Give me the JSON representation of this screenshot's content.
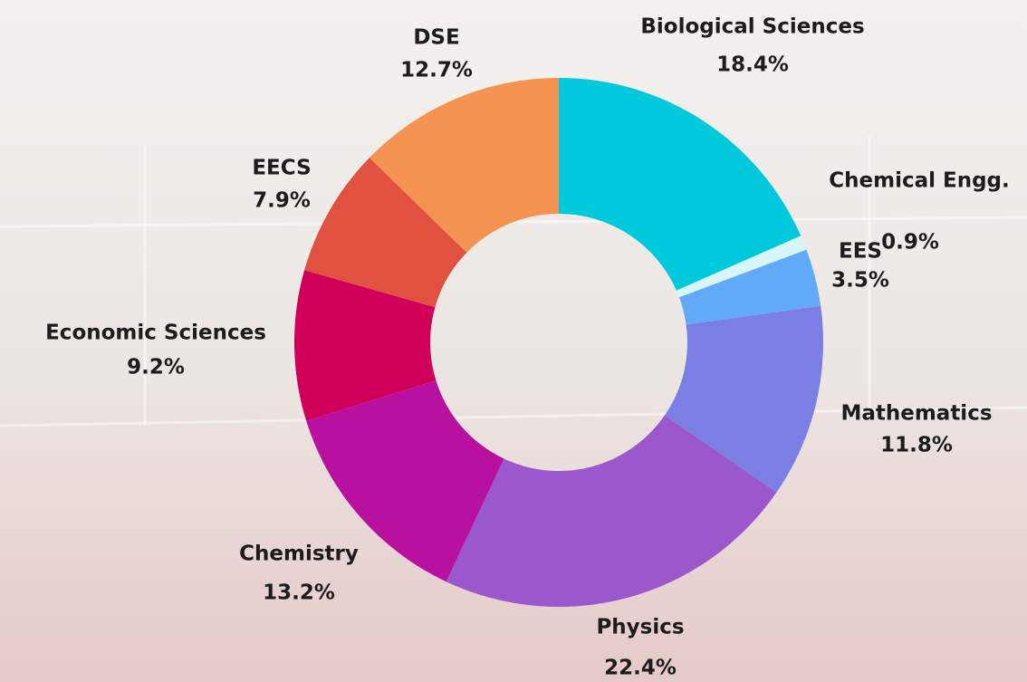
{
  "chart_data": {
    "type": "donut",
    "categories": [
      "Biological Sciences",
      "Chemical Engg.",
      "EES",
      "Mathematics",
      "Physics",
      "Chemistry",
      "Economic Sciences",
      "EECS",
      "DSE"
    ],
    "values": [
      18.4,
      0.9,
      3.5,
      11.8,
      22.4,
      13.2,
      9.2,
      7.9,
      12.7
    ],
    "value_labels": [
      "18.4%",
      "0.9%",
      "3.5%",
      "11.8%",
      "22.4%",
      "13.2%",
      "9.2%",
      "7.9%",
      "12.7%"
    ],
    "colors": [
      "#00c9dc",
      "#d6f6fa",
      "#62a9f8",
      "#7b7fe3",
      "#9a58cc",
      "#b811a0",
      "#d0005a",
      "#e0513f",
      "#f59352"
    ]
  }
}
